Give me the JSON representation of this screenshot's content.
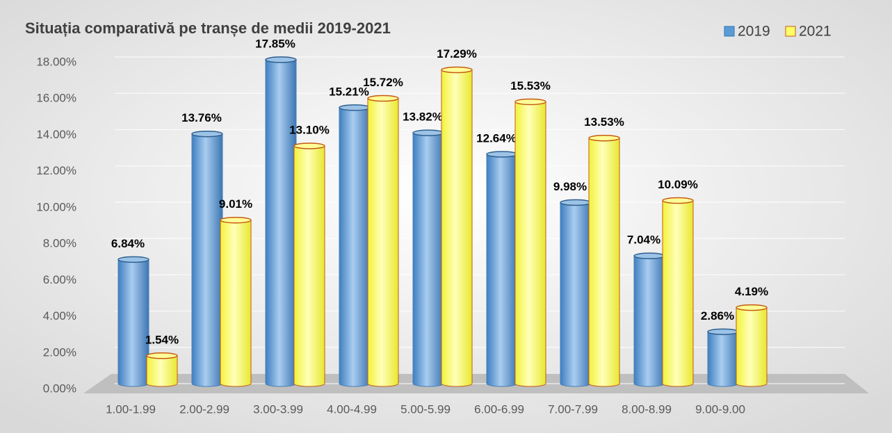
{
  "chart_data": {
    "type": "bar",
    "title": "Situația comparativă pe tranșe de medii 2019-2021",
    "categories": [
      "1.00-1.99",
      "2.00-2.99",
      "3.00-3.99",
      "4.00-4.99",
      "5.00-5.99",
      "6.00-6.99",
      "7.00-7.99",
      "8.00-8.99",
      "9.00-9.00"
    ],
    "series": [
      {
        "name": "2019",
        "color": "#5b9bd5",
        "values": [
          6.84,
          13.76,
          17.85,
          15.21,
          13.82,
          12.64,
          9.98,
          7.04,
          2.86
        ],
        "value_labels": [
          "6.84%",
          "13.76%",
          "17.85%",
          "15.21%",
          "13.82%",
          "12.64%",
          "9.98%",
          "7.04%",
          "2.86%"
        ]
      },
      {
        "name": "2021",
        "color": "#ffff66",
        "values": [
          1.54,
          9.01,
          13.1,
          15.72,
          17.29,
          15.53,
          13.53,
          10.09,
          4.19
        ],
        "value_labels": [
          "1.54%",
          "9.01%",
          "13.10%",
          "15.72%",
          "17.29%",
          "15.53%",
          "13.53%",
          "10.09%",
          "4.19%"
        ]
      }
    ],
    "ylim": [
      0,
      18
    ],
    "yticks": [
      {
        "value": 0,
        "label": "0.00%"
      },
      {
        "value": 2,
        "label": "2.00%"
      },
      {
        "value": 4,
        "label": "4.00%"
      },
      {
        "value": 6,
        "label": "6.00%"
      },
      {
        "value": 8,
        "label": "8.00%"
      },
      {
        "value": 10,
        "label": "10.00%"
      },
      {
        "value": 12,
        "label": "12.00%"
      },
      {
        "value": 14,
        "label": "14.00%"
      },
      {
        "value": 16,
        "label": "16.00%"
      },
      {
        "value": 18,
        "label": "18.00%"
      }
    ],
    "grid": true,
    "legend": "top-right"
  }
}
